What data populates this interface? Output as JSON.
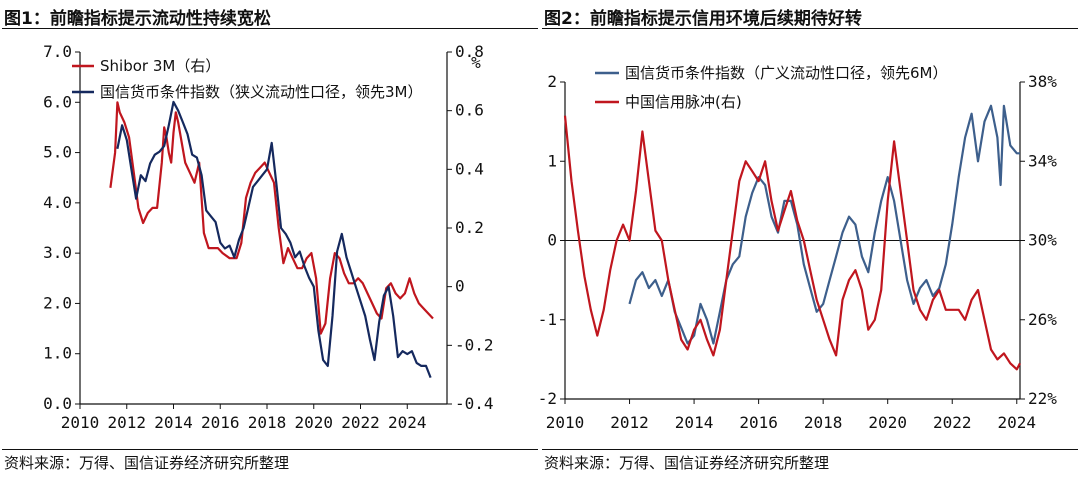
{
  "chart_data": [
    {
      "type": "line",
      "title": "图1：前瞻指标提示流动性持续宽松",
      "source": "资料来源：万得、国信证券经济研究所整理",
      "x_ticks": [
        2010,
        2012,
        2014,
        2016,
        2018,
        2020,
        2022,
        2024
      ],
      "x_tick_labels": [
        "2010",
        "2012",
        "2014",
        "2016",
        "2018",
        "2020",
        "2022",
        "2024"
      ],
      "xlim": [
        2010,
        2025.7
      ],
      "y_left": {
        "ylim": [
          0,
          7
        ],
        "ticks": [
          0,
          1,
          2,
          3,
          4,
          5,
          6,
          7
        ],
        "tick_labels": [
          "0.0",
          "1.0",
          "2.0",
          "3.0",
          "4.0",
          "5.0",
          "6.0",
          "7.0"
        ]
      },
      "y_right": {
        "ylim": [
          -0.4,
          0.8
        ],
        "ticks": [
          -0.4,
          -0.2,
          0,
          0.2,
          0.4,
          0.6,
          0.8
        ],
        "tick_labels": [
          "-0.4",
          "-0.2",
          "0",
          "0.2",
          "0.4",
          "0.6",
          "0.8"
        ],
        "unit": "%"
      },
      "legend_position": "top-left",
      "series": [
        {
          "name": "Shibor 3M（右）",
          "axis": "left",
          "color": "#c0161e",
          "x": [
            2011.3,
            2011.5,
            2011.6,
            2011.7,
            2011.9,
            2012.1,
            2012.3,
            2012.5,
            2012.7,
            2012.9,
            2013.1,
            2013.3,
            2013.5,
            2013.6,
            2013.7,
            2013.8,
            2013.9,
            2014.0,
            2014.1,
            2014.2,
            2014.35,
            2014.5,
            2014.7,
            2014.9,
            2015.1,
            2015.3,
            2015.5,
            2015.7,
            2015.9,
            2016.1,
            2016.4,
            2016.7,
            2016.9,
            2017.1,
            2017.3,
            2017.5,
            2017.7,
            2017.9,
            2018.1,
            2018.3,
            2018.5,
            2018.7,
            2018.9,
            2019.1,
            2019.3,
            2019.5,
            2019.7,
            2019.9,
            2020.1,
            2020.3,
            2020.5,
            2020.7,
            2020.9,
            2021.1,
            2021.3,
            2021.5,
            2021.7,
            2021.9,
            2022.1,
            2022.3,
            2022.5,
            2022.7,
            2022.9,
            2023.1,
            2023.3,
            2023.5,
            2023.7,
            2023.9,
            2024.1,
            2024.3,
            2024.5,
            2024.7,
            2024.9,
            2025.1
          ],
          "y": [
            4.3,
            5.0,
            6.0,
            5.8,
            5.6,
            5.3,
            4.6,
            3.9,
            3.6,
            3.8,
            3.9,
            3.9,
            4.8,
            5.5,
            5.3,
            5.0,
            4.8,
            5.4,
            5.8,
            5.6,
            5.2,
            4.8,
            4.6,
            4.4,
            4.8,
            3.4,
            3.1,
            3.1,
            3.1,
            3.0,
            2.9,
            2.9,
            3.2,
            4.1,
            4.4,
            4.6,
            4.7,
            4.8,
            4.6,
            4.4,
            3.5,
            2.8,
            3.1,
            2.9,
            2.7,
            2.7,
            2.9,
            3.0,
            2.5,
            1.4,
            1.6,
            2.5,
            3.0,
            2.9,
            2.6,
            2.4,
            2.4,
            2.5,
            2.4,
            2.2,
            2.0,
            1.8,
            1.7,
            2.3,
            2.4,
            2.2,
            2.1,
            2.2,
            2.5,
            2.2,
            2.0,
            1.9,
            1.8,
            1.7
          ]
        },
        {
          "name": "国信货币条件指数（狭义流动性口径，领先3M）",
          "axis": "right",
          "color": "#15295e",
          "x": [
            2011.6,
            2011.8,
            2012.0,
            2012.2,
            2012.4,
            2012.6,
            2012.8,
            2013.0,
            2013.2,
            2013.4,
            2013.6,
            2013.8,
            2014.0,
            2014.2,
            2014.4,
            2014.6,
            2014.8,
            2015.0,
            2015.2,
            2015.4,
            2015.6,
            2015.8,
            2016.0,
            2016.2,
            2016.4,
            2016.6,
            2016.8,
            2017.0,
            2017.2,
            2017.4,
            2017.6,
            2017.8,
            2018.0,
            2018.2,
            2018.4,
            2018.6,
            2018.8,
            2019.0,
            2019.2,
            2019.4,
            2019.6,
            2019.8,
            2020.0,
            2020.2,
            2020.4,
            2020.6,
            2020.8,
            2021.0,
            2021.2,
            2021.4,
            2021.6,
            2021.8,
            2022.0,
            2022.2,
            2022.4,
            2022.6,
            2022.8,
            2023.0,
            2023.2,
            2023.4,
            2023.6,
            2023.8,
            2024.0,
            2024.2,
            2024.4,
            2024.6,
            2024.8,
            2025.0
          ],
          "y": [
            0.47,
            0.55,
            0.5,
            0.4,
            0.3,
            0.38,
            0.36,
            0.42,
            0.45,
            0.46,
            0.48,
            0.55,
            0.63,
            0.6,
            0.56,
            0.52,
            0.45,
            0.44,
            0.38,
            0.26,
            0.24,
            0.22,
            0.15,
            0.13,
            0.14,
            0.1,
            0.16,
            0.2,
            0.27,
            0.34,
            0.36,
            0.38,
            0.4,
            0.49,
            0.35,
            0.2,
            0.18,
            0.15,
            0.1,
            0.12,
            0.07,
            0.03,
            0.0,
            -0.15,
            -0.25,
            -0.27,
            -0.1,
            0.12,
            0.18,
            0.1,
            0.05,
            0.0,
            -0.05,
            -0.1,
            -0.18,
            -0.25,
            -0.12,
            -0.03,
            0.0,
            -0.1,
            -0.24,
            -0.22,
            -0.23,
            -0.22,
            -0.26,
            -0.27,
            -0.27,
            -0.31
          ]
        }
      ]
    },
    {
      "type": "line",
      "title": "图2：前瞻指标提示信用环境后续期待好转",
      "source": "资料来源：万得、国信证券经济研究所整理",
      "x_ticks": [
        2010,
        2012,
        2014,
        2016,
        2018,
        2020,
        2022,
        2024
      ],
      "x_tick_labels": [
        "2010",
        "2012",
        "2014",
        "2016",
        "2018",
        "2020",
        "2022",
        "2024"
      ],
      "xlim": [
        2010,
        2024.1
      ],
      "y_left": {
        "ylim": [
          -2,
          2
        ],
        "ticks": [
          -2,
          -1,
          0,
          1,
          2
        ],
        "tick_labels": [
          "-2",
          "-1",
          "0",
          "1",
          "2"
        ]
      },
      "y_right": {
        "ylim": [
          22,
          38
        ],
        "ticks": [
          22,
          26,
          30,
          34,
          38
        ],
        "tick_labels": [
          "22%",
          "26%",
          "30%",
          "34%",
          "38%"
        ]
      },
      "legend_position": "top-left",
      "series": [
        {
          "name": "国信货币条件指数（广义流动性口径，领先6M）",
          "axis": "left",
          "color": "#3d5f8c",
          "x": [
            2012.0,
            2012.2,
            2012.4,
            2012.6,
            2012.8,
            2013.0,
            2013.2,
            2013.4,
            2013.6,
            2013.8,
            2014.0,
            2014.2,
            2014.4,
            2014.6,
            2014.8,
            2015.0,
            2015.2,
            2015.4,
            2015.6,
            2015.8,
            2016.0,
            2016.2,
            2016.4,
            2016.6,
            2016.8,
            2017.0,
            2017.2,
            2017.4,
            2017.6,
            2017.8,
            2018.0,
            2018.2,
            2018.4,
            2018.6,
            2018.8,
            2019.0,
            2019.2,
            2019.4,
            2019.6,
            2019.8,
            2020.0,
            2020.2,
            2020.4,
            2020.6,
            2020.8,
            2021.0,
            2021.2,
            2021.4,
            2021.6,
            2021.8,
            2022.0,
            2022.2,
            2022.4,
            2022.6,
            2022.8,
            2023.0,
            2023.2,
            2023.4,
            2023.5,
            2023.6,
            2023.8,
            2024.0,
            2024.1
          ],
          "y": [
            -0.8,
            -0.5,
            -0.4,
            -0.6,
            -0.5,
            -0.7,
            -0.5,
            -0.9,
            -1.1,
            -1.3,
            -1.2,
            -0.8,
            -1.0,
            -1.3,
            -0.9,
            -0.5,
            -0.3,
            -0.2,
            0.3,
            0.6,
            0.8,
            0.7,
            0.3,
            0.1,
            0.5,
            0.5,
            0.2,
            -0.3,
            -0.6,
            -0.9,
            -0.8,
            -0.5,
            -0.2,
            0.1,
            0.3,
            0.2,
            -0.2,
            -0.4,
            0.1,
            0.5,
            0.8,
            0.5,
            0.0,
            -0.5,
            -0.8,
            -0.6,
            -0.5,
            -0.7,
            -0.6,
            -0.3,
            0.2,
            0.8,
            1.3,
            1.6,
            1.0,
            1.5,
            1.7,
            1.3,
            0.7,
            1.7,
            1.2,
            1.1,
            1.1
          ]
        },
        {
          "name": "中国信用脉冲(右)",
          "axis": "right",
          "color": "#c0161e",
          "x": [
            2010.0,
            2010.2,
            2010.4,
            2010.6,
            2010.8,
            2011.0,
            2011.2,
            2011.4,
            2011.6,
            2011.8,
            2012.0,
            2012.2,
            2012.4,
            2012.6,
            2012.8,
            2013.0,
            2013.2,
            2013.4,
            2013.6,
            2013.8,
            2014.0,
            2014.2,
            2014.4,
            2014.6,
            2014.8,
            2015.0,
            2015.2,
            2015.4,
            2015.6,
            2015.8,
            2016.0,
            2016.2,
            2016.4,
            2016.6,
            2016.8,
            2017.0,
            2017.2,
            2017.4,
            2017.6,
            2017.8,
            2018.0,
            2018.2,
            2018.4,
            2018.6,
            2018.8,
            2019.0,
            2019.2,
            2019.4,
            2019.6,
            2019.8,
            2020.0,
            2020.2,
            2020.4,
            2020.6,
            2020.8,
            2021.0,
            2021.2,
            2021.4,
            2021.6,
            2021.8,
            2022.0,
            2022.2,
            2022.4,
            2022.6,
            2022.8,
            2023.0,
            2023.2,
            2023.4,
            2023.6,
            2023.8,
            2024.0,
            2024.1
          ],
          "y": [
            36.3,
            33.0,
            30.5,
            28.2,
            26.5,
            25.2,
            26.5,
            28.5,
            30.0,
            30.8,
            30.0,
            32.5,
            35.5,
            33.0,
            30.5,
            30.0,
            28.0,
            26.5,
            25.0,
            24.5,
            25.5,
            26.0,
            25.0,
            24.2,
            25.5,
            28.0,
            30.5,
            33.0,
            34.0,
            33.5,
            33.0,
            34.0,
            32.0,
            30.5,
            31.5,
            32.5,
            31.0,
            30.0,
            28.5,
            27.0,
            26.0,
            25.0,
            24.2,
            27.0,
            28.0,
            28.5,
            27.5,
            25.5,
            26.0,
            27.5,
            32.0,
            35.0,
            32.5,
            30.0,
            27.5,
            26.5,
            26.0,
            27.0,
            27.5,
            26.5,
            26.5,
            26.5,
            26.0,
            27.0,
            27.5,
            26.0,
            24.5,
            24.0,
            24.3,
            23.8,
            23.5,
            23.8
          ]
        }
      ],
      "legend": [
        "国信货币条件指数（广义流动性口径，领先6M）",
        "中国信用脉冲(右)"
      ]
    }
  ]
}
